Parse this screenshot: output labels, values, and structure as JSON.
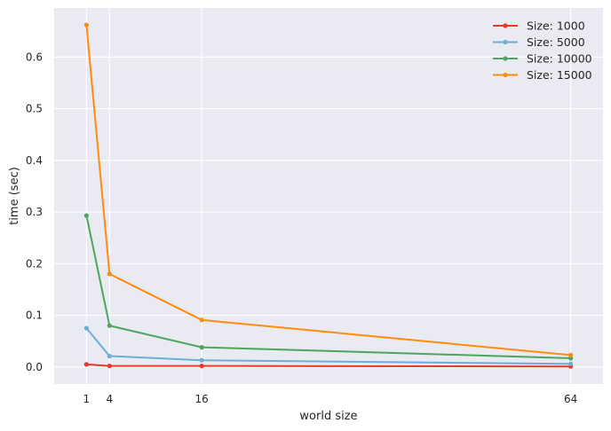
{
  "chart_data": {
    "type": "line",
    "title": "",
    "xlabel": "world size",
    "ylabel": "time (sec)",
    "x": [
      1,
      4,
      16,
      64
    ],
    "x_ticks": [
      1,
      4,
      16,
      64
    ],
    "x_tick_labels": [
      "1",
      "4",
      "16",
      "64"
    ],
    "xlim": [
      -3.2,
      68.2
    ],
    "y_ticks": [
      0.0,
      0.1,
      0.2,
      0.3,
      0.4,
      0.5,
      0.6
    ],
    "y_tick_labels": [
      "0.0",
      "0.1",
      "0.2",
      "0.3",
      "0.4",
      "0.5",
      "0.6"
    ],
    "ylim": [
      -0.033,
      0.695
    ],
    "grid": true,
    "legend_position": "top-right",
    "series": [
      {
        "name": "Size: 1000",
        "color": "#e8392a",
        "values": [
          0.005,
          0.002,
          0.002,
          0.001
        ]
      },
      {
        "name": "Size: 5000",
        "color": "#6baed6",
        "values": [
          0.075,
          0.021,
          0.013,
          0.006
        ]
      },
      {
        "name": "Size: 10000",
        "color": "#4ea55e",
        "values": [
          0.293,
          0.08,
          0.038,
          0.017
        ]
      },
      {
        "name": "Size: 15000",
        "color": "#ff8c0a",
        "values": [
          0.662,
          0.18,
          0.091,
          0.023
        ]
      }
    ]
  }
}
